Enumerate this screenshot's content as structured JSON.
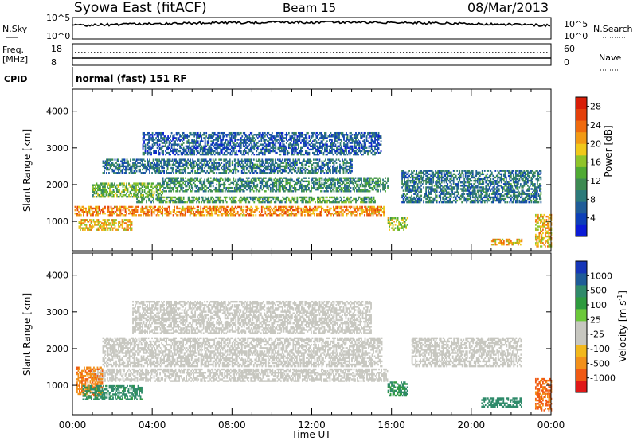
{
  "header": {
    "station": "Syowa East (fitACF)",
    "beam": "Beam 15",
    "date": "08/Mar/2013"
  },
  "status_panels": {
    "nsky_label": "N.Sky",
    "nsearch_label": "N.Search",
    "nsky_ticks": [
      "10^5",
      "10^0"
    ],
    "nsearch_ticks": [
      "10^5",
      "10^0"
    ],
    "freq_label": "Freq.",
    "freq_unit": "[MHz]",
    "freq_ticks": [
      "18",
      "8"
    ],
    "nave_label": "Nave",
    "nave_ticks": [
      "60",
      "0"
    ],
    "cpid_label": "CPID",
    "cpid_text": "normal (fast) 151 RF"
  },
  "colors": {
    "power_scale": [
      "#0b1bd6",
      "#0d3fb8",
      "#1f5c98",
      "#2c7a7a",
      "#3d8a52",
      "#4faa33",
      "#8fc42a",
      "#f0c81a",
      "#f29a14",
      "#ef6a0e",
      "#e4400b",
      "#d81e08"
    ],
    "velocity_scale": [
      "#e01818",
      "#f05a14",
      "#f2901a",
      "#f2b81c",
      "#c7c7c0",
      "#c7c7c0",
      "#6cc83a",
      "#2e9a3e",
      "#2f8a6a",
      "#1f5c98",
      "#1636b8"
    ]
  },
  "chart_data": [
    {
      "type": "heatmap",
      "panel": "power",
      "xlabel": "Time UT",
      "ylabel": "Slant Range [km]",
      "x_ticks": [
        "00:00",
        "04:00",
        "08:00",
        "12:00",
        "16:00",
        "20:00",
        "00:00"
      ],
      "xlim_hours": [
        0,
        24
      ],
      "ylim": [
        200,
        4600
      ],
      "y_ticks": [
        1000,
        2000,
        3000,
        4000
      ],
      "colorbar_label": "Power [dB]",
      "colorbar_ticks": [
        4,
        8,
        12,
        16,
        20,
        24,
        28
      ],
      "colorbar_range": [
        0,
        30
      ],
      "regions": [
        {
          "t0": 0.1,
          "t1": 15.6,
          "r0": 1150,
          "r1": 1420,
          "value": 22
        },
        {
          "t0": 3.2,
          "t1": 15.2,
          "r0": 1500,
          "r1": 1650,
          "value": 12
        },
        {
          "t0": 0.3,
          "t1": 3.0,
          "r0": 750,
          "r1": 1050,
          "value": 20
        },
        {
          "t0": 1.0,
          "t1": 4.5,
          "r0": 1650,
          "r1": 2050,
          "value": 14
        },
        {
          "t0": 4.5,
          "t1": 15.8,
          "r0": 1800,
          "r1": 2200,
          "value": 10
        },
        {
          "t0": 1.5,
          "t1": 14.0,
          "r0": 2300,
          "r1": 2700,
          "value": 8
        },
        {
          "t0": 3.5,
          "t1": 15.5,
          "r0": 2800,
          "r1": 3400,
          "value": 6
        },
        {
          "t0": 16.5,
          "t1": 23.5,
          "r0": 1500,
          "r1": 2400,
          "value": 8
        },
        {
          "t0": 15.8,
          "t1": 16.8,
          "r0": 750,
          "r1": 1100,
          "value": 16
        },
        {
          "t0": 21.0,
          "t1": 22.5,
          "r0": 350,
          "r1": 500,
          "value": 20
        },
        {
          "t0": 23.2,
          "t1": 24.0,
          "r0": 300,
          "r1": 1200,
          "value": 20
        }
      ]
    },
    {
      "type": "heatmap",
      "panel": "velocity",
      "xlabel": "Time UT",
      "ylabel": "Slant Range [km]",
      "x_ticks": [
        "00:00",
        "04:00",
        "08:00",
        "12:00",
        "16:00",
        "20:00",
        "00:00"
      ],
      "xlim_hours": [
        0,
        24
      ],
      "ylim": [
        200,
        4600
      ],
      "y_ticks": [
        1000,
        2000,
        3000,
        4000
      ],
      "colorbar_label": "Velocity [m s^-1]",
      "colorbar_ticks": [
        "1000",
        "500",
        "100",
        "25",
        "-25",
        "-100",
        "-500",
        "-1000"
      ],
      "regions": [
        {
          "t0": 1.0,
          "t1": 15.8,
          "r0": 1100,
          "r1": 1450,
          "value": 0
        },
        {
          "t0": 1.5,
          "t1": 15.5,
          "r0": 1500,
          "r1": 2300,
          "value": 0
        },
        {
          "t0": 3.0,
          "t1": 15.0,
          "r0": 2400,
          "r1": 3300,
          "value": 0
        },
        {
          "t0": 0.2,
          "t1": 1.5,
          "r0": 700,
          "r1": 1500,
          "value": -400
        },
        {
          "t0": 0.5,
          "t1": 3.5,
          "r0": 600,
          "r1": 1000,
          "value": 150
        },
        {
          "t0": 15.8,
          "t1": 16.8,
          "r0": 700,
          "r1": 1100,
          "value": 120
        },
        {
          "t0": 17.0,
          "t1": 22.5,
          "r0": 1500,
          "r1": 2300,
          "value": 0
        },
        {
          "t0": 20.5,
          "t1": 22.5,
          "r0": 400,
          "r1": 650,
          "value": 200
        },
        {
          "t0": 23.2,
          "t1": 24.0,
          "r0": 300,
          "r1": 1200,
          "value": -600
        }
      ]
    }
  ]
}
